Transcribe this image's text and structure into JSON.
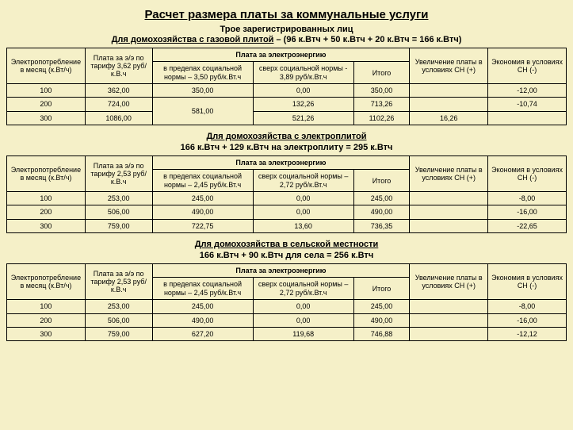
{
  "title": "Расчет размера платы за коммунальные услуги",
  "persons_line": "Трое зарегистрированных лиц",
  "headers": {
    "consumption": "Электропотребление в месяц (к.Вт/ч)",
    "tariff_a": "Плата за э/э по тарифу 3,62 руб/к.В.ч",
    "tariff_b": "Плата за э/э по тарифу 2,53 руб/к.В.ч",
    "payment_group": "Плата за электроэнергию",
    "within_a": "в пределах социальной нормы – 3,50 руб/к.Вт.ч",
    "over_a": "сверх социальной нормы - 3,89 руб/к.Вт.ч",
    "within_b": "в пределах социальной нормы – 2,45 руб/к.Вт.ч",
    "over_b": "сверх социальной нормы – 2,72 руб/к.Вт.ч",
    "total": "Итого",
    "increase": "Увеличение платы в условиях СН (+)",
    "saving": "Экономия в условиях СН (-)"
  },
  "section1": {
    "title_html": "Для домохозяйства с газовой плитой – (96 к.Втч + 50 к.Втч + 20 к.Втч = 166 к.Втч)",
    "title_underline": "Для домохозяйства с газовой плитой",
    "rows": [
      {
        "c": "100",
        "t": "362,00",
        "w": "350,00",
        "o": "0,00",
        "tot": "350,00",
        "inc": "",
        "sav": "-12,00"
      },
      {
        "c": "200",
        "t": "724,00",
        "w": "",
        "o": "132,26",
        "tot": "713,26",
        "inc": "",
        "sav": "-10,74"
      },
      {
        "c": "300",
        "t": "1086,00",
        "w": "",
        "o": "521,26",
        "tot": "1102,26",
        "inc": "16,26",
        "sav": ""
      }
    ],
    "within_span": "581,00"
  },
  "section2": {
    "title_underline": "Для домохозяйства с электроплитой",
    "title_rest": "166 к.Втч + 129 к.Втч на электроплиту = 295 к.Втч",
    "rows": [
      {
        "c": "100",
        "t": "253,00",
        "w": "245,00",
        "o": "0,00",
        "tot": "245,00",
        "inc": "",
        "sav": "-8,00"
      },
      {
        "c": "200",
        "t": "506,00",
        "w": "490,00",
        "o": "0,00",
        "tot": "490,00",
        "inc": "",
        "sav": "-16,00"
      },
      {
        "c": "300",
        "t": "759,00",
        "w": "722,75",
        "o": "13,60",
        "tot": "736,35",
        "inc": "",
        "sav": "-22,65"
      }
    ]
  },
  "section3": {
    "title_underline": "Для домохозяйства в сельской местности",
    "title_rest": "166 к.Втч + 90 к.Втч для села = 256 к.Втч",
    "rows": [
      {
        "c": "100",
        "t": "253,00",
        "w": "245,00",
        "o": "0,00",
        "tot": "245,00",
        "inc": "",
        "sav": "-8,00"
      },
      {
        "c": "200",
        "t": "506,00",
        "w": "490,00",
        "o": "0,00",
        "tot": "490,00",
        "inc": "",
        "sav": "-16,00"
      },
      {
        "c": "300",
        "t": "759,00",
        "w": "627,20",
        "o": "119,68",
        "tot": "746,88",
        "inc": "",
        "sav": "-12,12"
      }
    ]
  }
}
